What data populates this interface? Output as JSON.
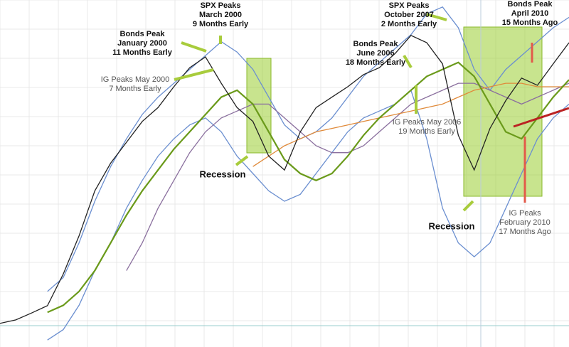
{
  "chart_data": {
    "type": "line",
    "categories": [
      null,
      null,
      null,
      null,
      null,
      null,
      null,
      null,
      null,
      null,
      null,
      null,
      null,
      null,
      null,
      null,
      null,
      null,
      null,
      null,
      null,
      null,
      null,
      null,
      null,
      null,
      null,
      null,
      null,
      null,
      null,
      null,
      null,
      null,
      null,
      null,
      null
    ],
    "ylim": [
      0,
      100
    ],
    "grid": true,
    "series": [
      {
        "color": "#6b8fd0",
        "values": [
          null,
          null,
          null,
          16,
          20,
          30,
          42,
          52,
          60,
          67,
          72,
          76,
          80,
          84,
          88,
          85,
          80,
          72,
          64,
          60,
          62,
          66,
          72,
          78,
          82,
          86,
          90,
          96,
          98,
          92,
          80,
          74,
          80,
          84,
          88,
          92,
          95
        ]
      },
      {
        "color": "#6b8fd0",
        "values": [
          null,
          null,
          null,
          2,
          5,
          12,
          22,
          30,
          40,
          48,
          55,
          60,
          64,
          66,
          62,
          55,
          50,
          45,
          42,
          44,
          50,
          56,
          62,
          66,
          68,
          70,
          74,
          60,
          40,
          30,
          26,
          30,
          40,
          50,
          60,
          66,
          70
        ]
      },
      {
        "color": "#8a6f9e",
        "values": [
          null,
          null,
          null,
          null,
          null,
          null,
          null,
          null,
          22,
          30,
          40,
          48,
          56,
          62,
          66,
          68,
          70,
          70,
          66,
          62,
          58,
          56,
          56,
          58,
          62,
          66,
          70,
          72,
          74,
          76,
          76,
          74,
          72,
          70,
          72,
          74,
          76
        ]
      },
      {
        "color": "#e08a3a",
        "values": [
          null,
          null,
          null,
          null,
          null,
          null,
          null,
          null,
          null,
          null,
          null,
          null,
          null,
          null,
          null,
          null,
          52,
          55,
          58,
          60,
          62,
          63,
          64,
          65,
          66,
          67,
          68,
          69,
          70,
          72,
          74,
          75,
          76,
          76,
          75,
          75,
          75
        ]
      },
      {
        "color": "#6a9a1a",
        "values": [
          null,
          null,
          null,
          10,
          12,
          16,
          22,
          30,
          38,
          45,
          51,
          57,
          62,
          67,
          72,
          74,
          70,
          62,
          54,
          50,
          48,
          50,
          55,
          61,
          66,
          70,
          74,
          78,
          80,
          82,
          78,
          70,
          62,
          60,
          66,
          72,
          77
        ]
      },
      {
        "color": "#222222",
        "values": [
          6.8,
          7.8,
          9.8,
          11.9,
          21,
          32,
          45,
          53,
          59,
          65,
          69,
          75,
          80.5,
          83.6,
          76,
          69,
          65,
          55,
          51,
          62,
          69,
          72,
          75,
          78.5,
          80.5,
          84.6,
          89.8,
          87.7,
          81.6,
          61,
          51,
          63,
          71,
          77.5,
          75.4,
          81.6,
          87.7
        ]
      }
    ],
    "annotations": [
      {
        "lines": [
          "SPX Peaks",
          "March 2000",
          "9 Months Early"
        ]
      },
      {
        "lines": [
          "Bonds Peak",
          "January 2000",
          "11 Months Early"
        ]
      },
      {
        "lines": [
          "IG Peaks May 2000",
          "7 Months Early"
        ]
      },
      {
        "lines": [
          "Recession"
        ]
      },
      {
        "lines": [
          "SPX Peaks",
          "October 2007",
          "2 Months Early"
        ]
      },
      {
        "lines": [
          "Bonds Peak",
          "June 2006",
          "18 Months Early"
        ]
      },
      {
        "lines": [
          "IG Peaks May 2006",
          "19 Months Early"
        ]
      },
      {
        "lines": [
          "Recession"
        ]
      },
      {
        "lines": [
          "Bonds Peak",
          "April 2010",
          "15 Months Ago"
        ]
      },
      {
        "lines": [
          "IG Peaks",
          "February 2010",
          "17 Months Ago"
        ]
      }
    ]
  }
}
